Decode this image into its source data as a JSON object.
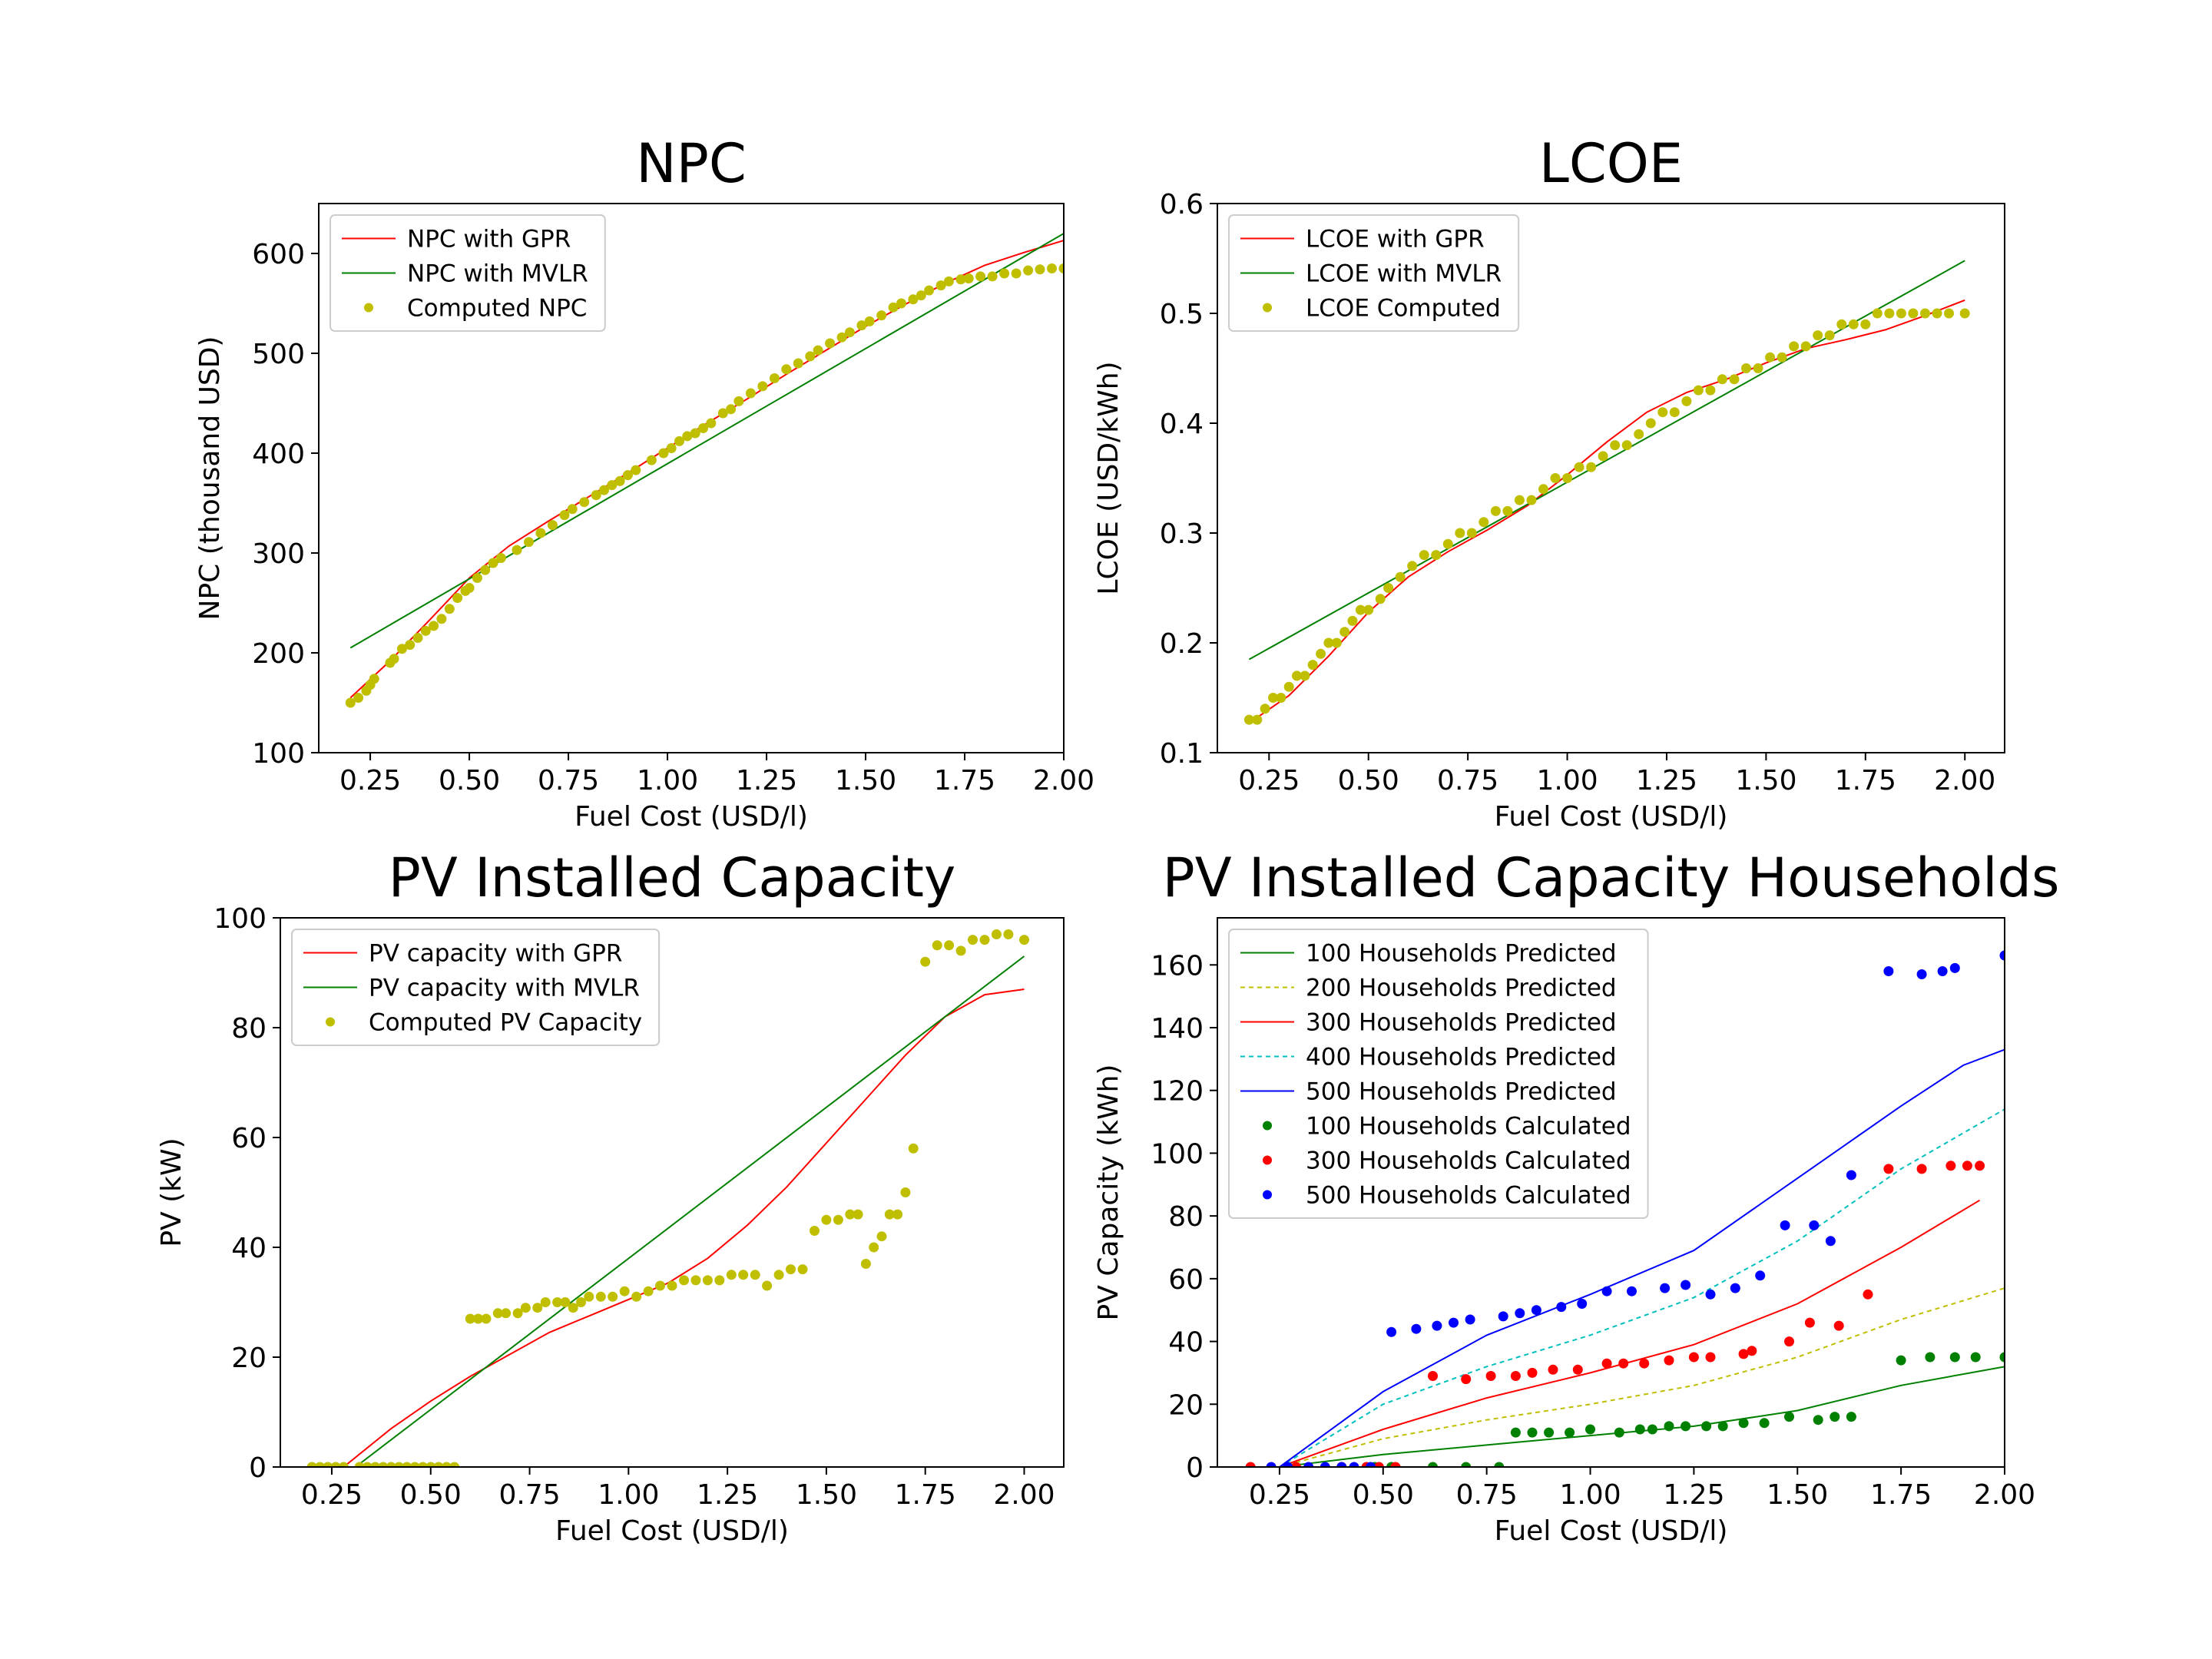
{
  "chart_data": [
    {
      "id": "npc",
      "type": "scatter",
      "title": "NPC",
      "xlabel": "Fuel Cost (USD/l)",
      "ylabel": "NPC (thousand USD)",
      "xlim": [
        0.12,
        2.0
      ],
      "ylim": [
        100,
        650
      ],
      "xticks": [
        "0.25",
        "0.50",
        "0.75",
        "1.00",
        "1.25",
        "1.50",
        "1.75",
        "2.00"
      ],
      "yticks": [
        "100",
        "200",
        "300",
        "400",
        "500",
        "600"
      ],
      "legend_position": "upper-left",
      "lines": [
        {
          "name": "NPC with GPR",
          "color": "#ff0000",
          "dash": "",
          "x": [
            0.2,
            0.3,
            0.4,
            0.5,
            0.6,
            0.7,
            0.8,
            0.9,
            1.0,
            1.1,
            1.2,
            1.3,
            1.4,
            1.5,
            1.6,
            1.7,
            1.8,
            1.9,
            2.0
          ],
          "y": [
            155,
            192,
            233,
            275,
            307,
            332,
            356,
            380,
            405,
            430,
            454,
            479,
            503,
            527,
            549,
            570,
            588,
            601,
            613
          ]
        },
        {
          "name": "NPC with MVLR",
          "color": "#008000",
          "dash": "",
          "x": [
            0.2,
            2.0
          ],
          "y": [
            205,
            620
          ]
        }
      ],
      "points": [
        {
          "name": "Computed NPC",
          "color": "#bfbf00",
          "r": 6,
          "x": [
            0.2,
            0.22,
            0.24,
            0.25,
            0.26,
            0.3,
            0.31,
            0.33,
            0.35,
            0.37,
            0.39,
            0.41,
            0.43,
            0.45,
            0.47,
            0.49,
            0.5,
            0.52,
            0.54,
            0.56,
            0.58,
            0.62,
            0.65,
            0.68,
            0.71,
            0.74,
            0.76,
            0.79,
            0.82,
            0.84,
            0.86,
            0.88,
            0.9,
            0.92,
            0.96,
            0.99,
            1.01,
            1.03,
            1.05,
            1.07,
            1.09,
            1.11,
            1.14,
            1.16,
            1.18,
            1.21,
            1.24,
            1.27,
            1.3,
            1.33,
            1.36,
            1.38,
            1.41,
            1.44,
            1.46,
            1.49,
            1.51,
            1.54,
            1.57,
            1.59,
            1.62,
            1.64,
            1.66,
            1.69,
            1.71,
            1.74,
            1.76,
            1.79,
            1.82,
            1.85,
            1.88,
            1.91,
            1.94,
            1.97,
            2.0
          ],
          "y": [
            150,
            155,
            162,
            168,
            174,
            190,
            194,
            204,
            208,
            215,
            222,
            227,
            234,
            244,
            255,
            262,
            265,
            275,
            283,
            290,
            295,
            303,
            311,
            320,
            328,
            338,
            344,
            351,
            358,
            363,
            368,
            372,
            378,
            383,
            393,
            400,
            405,
            412,
            417,
            420,
            425,
            430,
            440,
            444,
            452,
            460,
            467,
            475,
            484,
            490,
            497,
            503,
            510,
            516,
            521,
            528,
            532,
            538,
            546,
            550,
            554,
            558,
            563,
            568,
            572,
            574,
            575,
            577,
            577,
            580,
            580,
            583,
            584,
            585,
            585
          ]
        }
      ]
    },
    {
      "id": "lcoe",
      "type": "scatter",
      "title": "LCOE",
      "xlabel": "Fuel Cost (USD/l)",
      "ylabel": "LCOE (USD/kWh)",
      "xlim": [
        0.12,
        2.1
      ],
      "ylim": [
        0.1,
        0.6
      ],
      "xticks": [
        "0.25",
        "0.50",
        "0.75",
        "1.00",
        "1.25",
        "1.50",
        "1.75",
        "2.00"
      ],
      "yticks": [
        "0.1",
        "0.2",
        "0.3",
        "0.4",
        "0.5",
        "0.6"
      ],
      "legend_position": "upper-left",
      "lines": [
        {
          "name": "LCOE with GPR",
          "color": "#ff0000",
          "dash": "",
          "x": [
            0.2,
            0.3,
            0.4,
            0.5,
            0.6,
            0.7,
            0.8,
            0.9,
            1.0,
            1.1,
            1.2,
            1.3,
            1.4,
            1.5,
            1.6,
            1.7,
            1.8,
            1.9,
            2.0
          ],
          "y": [
            0.127,
            0.152,
            0.188,
            0.228,
            0.26,
            0.283,
            0.303,
            0.325,
            0.353,
            0.383,
            0.41,
            0.428,
            0.44,
            0.455,
            0.468,
            0.476,
            0.485,
            0.498,
            0.512
          ]
        },
        {
          "name": "LCOE with MVLR",
          "color": "#008000",
          "dash": "",
          "x": [
            0.2,
            2.0
          ],
          "y": [
            0.185,
            0.548
          ]
        }
      ],
      "points": [
        {
          "name": "LCOE Computed",
          "color": "#bfbf00",
          "r": 6,
          "x": [
            0.2,
            0.22,
            0.24,
            0.26,
            0.28,
            0.3,
            0.32,
            0.34,
            0.36,
            0.38,
            0.4,
            0.42,
            0.44,
            0.46,
            0.48,
            0.5,
            0.53,
            0.55,
            0.58,
            0.61,
            0.64,
            0.67,
            0.7,
            0.73,
            0.76,
            0.79,
            0.82,
            0.85,
            0.88,
            0.91,
            0.94,
            0.97,
            1.0,
            1.03,
            1.06,
            1.09,
            1.12,
            1.15,
            1.18,
            1.21,
            1.24,
            1.27,
            1.3,
            1.33,
            1.36,
            1.39,
            1.42,
            1.45,
            1.48,
            1.51,
            1.54,
            1.57,
            1.6,
            1.63,
            1.66,
            1.69,
            1.72,
            1.75,
            1.78,
            1.81,
            1.84,
            1.87,
            1.9,
            1.93,
            1.96,
            2.0
          ],
          "y": [
            0.13,
            0.13,
            0.14,
            0.15,
            0.15,
            0.16,
            0.17,
            0.17,
            0.18,
            0.19,
            0.2,
            0.2,
            0.21,
            0.22,
            0.23,
            0.23,
            0.24,
            0.25,
            0.26,
            0.27,
            0.28,
            0.28,
            0.29,
            0.3,
            0.3,
            0.31,
            0.32,
            0.32,
            0.33,
            0.33,
            0.34,
            0.35,
            0.35,
            0.36,
            0.36,
            0.37,
            0.38,
            0.38,
            0.39,
            0.4,
            0.41,
            0.41,
            0.42,
            0.43,
            0.43,
            0.44,
            0.44,
            0.45,
            0.45,
            0.46,
            0.46,
            0.47,
            0.47,
            0.48,
            0.48,
            0.49,
            0.49,
            0.49,
            0.5,
            0.5,
            0.5,
            0.5,
            0.5,
            0.5,
            0.5,
            0.5
          ]
        }
      ]
    },
    {
      "id": "pv",
      "type": "scatter",
      "title": "PV Installed Capacity",
      "xlabel": "Fuel Cost (USD/l)",
      "ylabel": "PV (kW)",
      "xlim": [
        0.12,
        2.1
      ],
      "ylim": [
        0,
        100
      ],
      "xticks": [
        "0.25",
        "0.50",
        "0.75",
        "1.00",
        "1.25",
        "1.50",
        "1.75",
        "2.00"
      ],
      "yticks": [
        "0",
        "20",
        "40",
        "60",
        "80",
        "100"
      ],
      "legend_position": "upper-left",
      "lines": [
        {
          "name": "PV capacity with GPR",
          "color": "#ff0000",
          "dash": "",
          "x": [
            0.28,
            0.4,
            0.5,
            0.6,
            0.7,
            0.8,
            0.9,
            1.0,
            1.1,
            1.2,
            1.3,
            1.4,
            1.5,
            1.6,
            1.7,
            1.8,
            1.9,
            2.0
          ],
          "y": [
            0,
            7,
            12,
            16.5,
            20.5,
            24.5,
            27.5,
            30.5,
            33.5,
            38,
            44,
            51,
            59,
            67,
            75,
            82,
            86,
            87
          ]
        },
        {
          "name": "PV capacity with MVLR",
          "color": "#008000",
          "dash": "",
          "x": [
            0.31,
            2.0
          ],
          "y": [
            0,
            93
          ]
        }
      ],
      "points": [
        {
          "name": "Computed PV Capacity",
          "color": "#bfbf00",
          "r": 6,
          "x": [
            0.2,
            0.22,
            0.24,
            0.26,
            0.28,
            0.32,
            0.34,
            0.36,
            0.38,
            0.4,
            0.42,
            0.44,
            0.46,
            0.48,
            0.5,
            0.52,
            0.54,
            0.56,
            0.6,
            0.62,
            0.64,
            0.67,
            0.69,
            0.72,
            0.74,
            0.77,
            0.79,
            0.82,
            0.84,
            0.86,
            0.88,
            0.9,
            0.93,
            0.96,
            0.99,
            1.02,
            1.05,
            1.08,
            1.11,
            1.14,
            1.17,
            1.2,
            1.23,
            1.26,
            1.29,
            1.32,
            1.35,
            1.38,
            1.41,
            1.44,
            1.47,
            1.5,
            1.53,
            1.56,
            1.58,
            1.6,
            1.62,
            1.64,
            1.66,
            1.68,
            1.7,
            1.72,
            1.75,
            1.78,
            1.81,
            1.84,
            1.87,
            1.9,
            1.93,
            1.96,
            2.0
          ],
          "y": [
            0,
            0,
            0,
            0,
            0,
            0,
            0,
            0,
            0,
            0,
            0,
            0,
            0,
            0,
            0,
            0,
            0,
            0,
            27,
            27,
            27,
            28,
            28,
            28,
            29,
            29,
            30,
            30,
            30,
            29,
            30,
            31,
            31,
            31,
            32,
            31,
            32,
            33,
            33,
            34,
            34,
            34,
            34,
            35,
            35,
            35,
            33,
            35,
            36,
            36,
            43,
            45,
            45,
            46,
            46,
            37,
            40,
            42,
            46,
            46,
            50,
            58,
            92,
            95,
            95,
            94,
            96,
            96,
            97,
            97,
            96
          ]
        }
      ]
    },
    {
      "id": "households",
      "type": "scatter",
      "title": "PV Installed Capacity Households",
      "xlabel": "Fuel Cost (USD/l)",
      "ylabel": "PV Capacity (kWh)",
      "xlim": [
        0.1,
        2.0
      ],
      "ylim": [
        0,
        175
      ],
      "xticks": [
        "0.25",
        "0.50",
        "0.75",
        "1.00",
        "1.25",
        "1.50",
        "1.75",
        "2.00"
      ],
      "yticks": [
        "0",
        "20",
        "40",
        "60",
        "80",
        "100",
        "120",
        "140",
        "160"
      ],
      "legend_position": "upper-left",
      "lines": [
        {
          "name": "100 Households Predicted",
          "color": "#008000",
          "dash": "",
          "x": [
            0.25,
            0.5,
            0.75,
            1.0,
            1.25,
            1.5,
            1.75,
            2.0
          ],
          "y": [
            0,
            4,
            7,
            10,
            13,
            18,
            26,
            32
          ]
        },
        {
          "name": "200 Households Predicted",
          "color": "#bfbf00",
          "dash": "6,5",
          "x": [
            0.25,
            0.5,
            0.75,
            1.0,
            1.25,
            1.5,
            1.75,
            2.0
          ],
          "y": [
            0,
            9,
            15,
            20,
            26,
            35,
            47,
            57
          ]
        },
        {
          "name": "300 Households Predicted",
          "color": "#ff0000",
          "dash": "",
          "x": [
            0.25,
            0.5,
            0.75,
            1.0,
            1.25,
            1.5,
            1.75,
            1.94
          ],
          "y": [
            0,
            12,
            22,
            30,
            39,
            52,
            70,
            85
          ]
        },
        {
          "name": "400 Households Predicted",
          "color": "#00bfbf",
          "dash": "6,5",
          "x": [
            0.25,
            0.5,
            0.75,
            1.0,
            1.25,
            1.5,
            1.75,
            2.0
          ],
          "y": [
            0,
            20,
            32,
            42,
            54,
            72,
            95,
            114
          ]
        },
        {
          "name": "500 Households Predicted",
          "color": "#0000ff",
          "dash": "",
          "x": [
            0.25,
            0.5,
            0.75,
            1.0,
            1.25,
            1.5,
            1.75,
            1.9,
            2.0
          ],
          "y": [
            0,
            24,
            42,
            55,
            69,
            92,
            115,
            128,
            133
          ]
        }
      ],
      "points": [
        {
          "name": "100 Households Calculated",
          "color": "#008000",
          "r": 6,
          "x": [
            0.48,
            0.52,
            0.62,
            0.7,
            0.78,
            0.82,
            0.86,
            0.9,
            0.95,
            1.0,
            1.07,
            1.12,
            1.15,
            1.19,
            1.23,
            1.28,
            1.32,
            1.37,
            1.42,
            1.48,
            1.55,
            1.59,
            1.63,
            1.75,
            1.82,
            1.88,
            1.93,
            2.0
          ],
          "y": [
            0,
            0,
            0,
            0,
            0,
            11,
            11,
            11,
            11,
            12,
            11,
            12,
            12,
            13,
            13,
            13,
            13,
            14,
            14,
            16,
            15,
            16,
            16,
            34,
            35,
            35,
            35,
            35
          ]
        },
        {
          "name": "300 Households Calculated",
          "color": "#ff0000",
          "r": 6,
          "x": [
            0.18,
            0.29,
            0.4,
            0.46,
            0.49,
            0.53,
            0.62,
            0.7,
            0.76,
            0.82,
            0.86,
            0.91,
            0.97,
            1.04,
            1.08,
            1.13,
            1.19,
            1.25,
            1.29,
            1.37,
            1.39,
            1.48,
            1.53,
            1.6,
            1.67,
            1.72,
            1.8,
            1.87,
            1.91,
            1.94
          ],
          "y": [
            0,
            0,
            0,
            0,
            0,
            0,
            29,
            28,
            29,
            29,
            30,
            31,
            31,
            33,
            33,
            33,
            34,
            35,
            35,
            36,
            37,
            40,
            46,
            45,
            55,
            95,
            95,
            96,
            96,
            96
          ]
        },
        {
          "name": "500 Households Calculated",
          "color": "#0000ff",
          "r": 6,
          "x": [
            0.23,
            0.27,
            0.32,
            0.36,
            0.4,
            0.43,
            0.47,
            0.52,
            0.58,
            0.63,
            0.67,
            0.71,
            0.79,
            0.83,
            0.87,
            0.93,
            0.98,
            1.04,
            1.1,
            1.18,
            1.23,
            1.29,
            1.35,
            1.41,
            1.47,
            1.54,
            1.58,
            1.63,
            1.72,
            1.8,
            1.85,
            1.88,
            2.0
          ],
          "y": [
            0,
            0,
            0,
            0,
            0,
            0,
            0,
            43,
            44,
            45,
            46,
            47,
            48,
            49,
            50,
            51,
            52,
            56,
            56,
            57,
            58,
            55,
            57,
            61,
            77,
            77,
            72,
            93,
            158,
            157,
            158,
            159,
            163
          ]
        }
      ]
    }
  ]
}
